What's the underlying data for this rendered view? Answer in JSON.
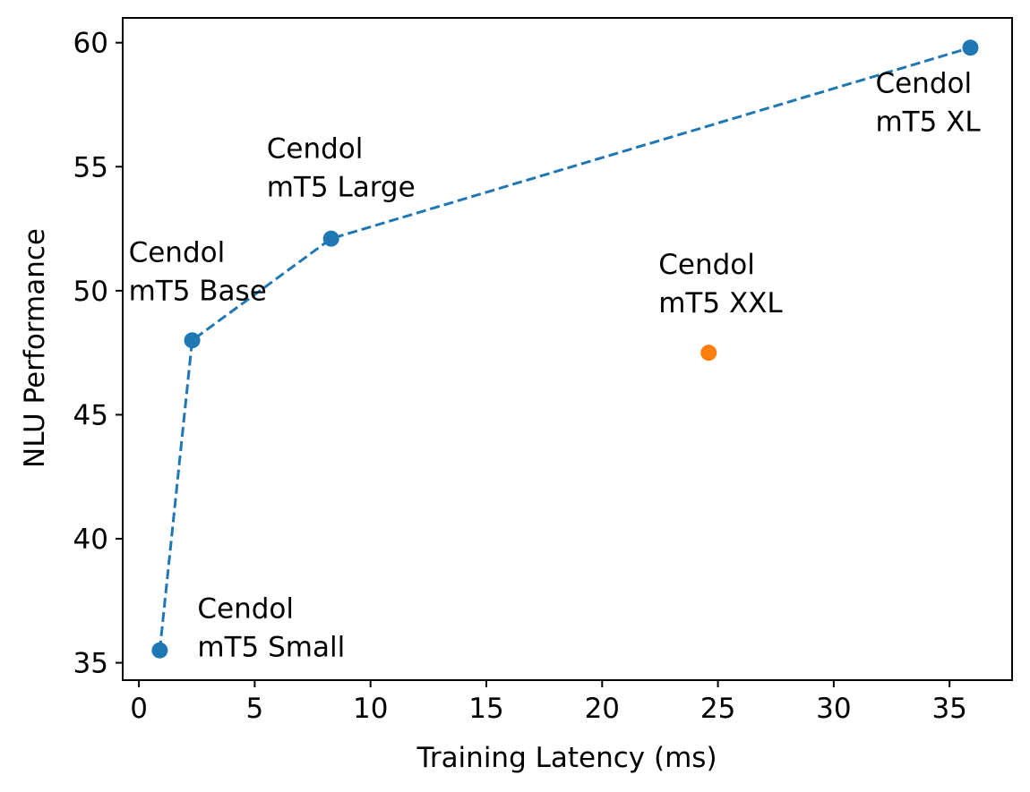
{
  "chart_data": {
    "type": "scatter",
    "xlabel": "Training Latency (ms)",
    "ylabel": "NLU Performance",
    "xlim": [
      -0.7,
      37.7
    ],
    "ylim": [
      34.3,
      61.0
    ],
    "xticks": [
      0,
      5,
      10,
      15,
      20,
      25,
      30,
      35
    ],
    "yticks": [
      35,
      40,
      45,
      50,
      55,
      60
    ],
    "grid": false,
    "series": [
      {
        "style": "dashed-line-with-markers",
        "color": "#1f77b4",
        "points": [
          {
            "x": 0.9,
            "y": 35.5,
            "label": [
              "Cendol",
              "mT5 Small"
            ]
          },
          {
            "x": 2.3,
            "y": 48.0,
            "label": [
              "Cendol",
              "mT5 Base"
            ]
          },
          {
            "x": 8.3,
            "y": 52.1,
            "label": [
              "Cendol",
              "mT5 Large"
            ]
          },
          {
            "x": 35.9,
            "y": 59.8,
            "label": [
              "Cendol",
              "mT5 XL"
            ]
          }
        ]
      },
      {
        "style": "marker-only",
        "color": "#ff7f0e",
        "points": [
          {
            "x": 24.6,
            "y": 47.5,
            "label": [
              "Cendol",
              "mT5 XXL"
            ]
          }
        ]
      }
    ]
  }
}
